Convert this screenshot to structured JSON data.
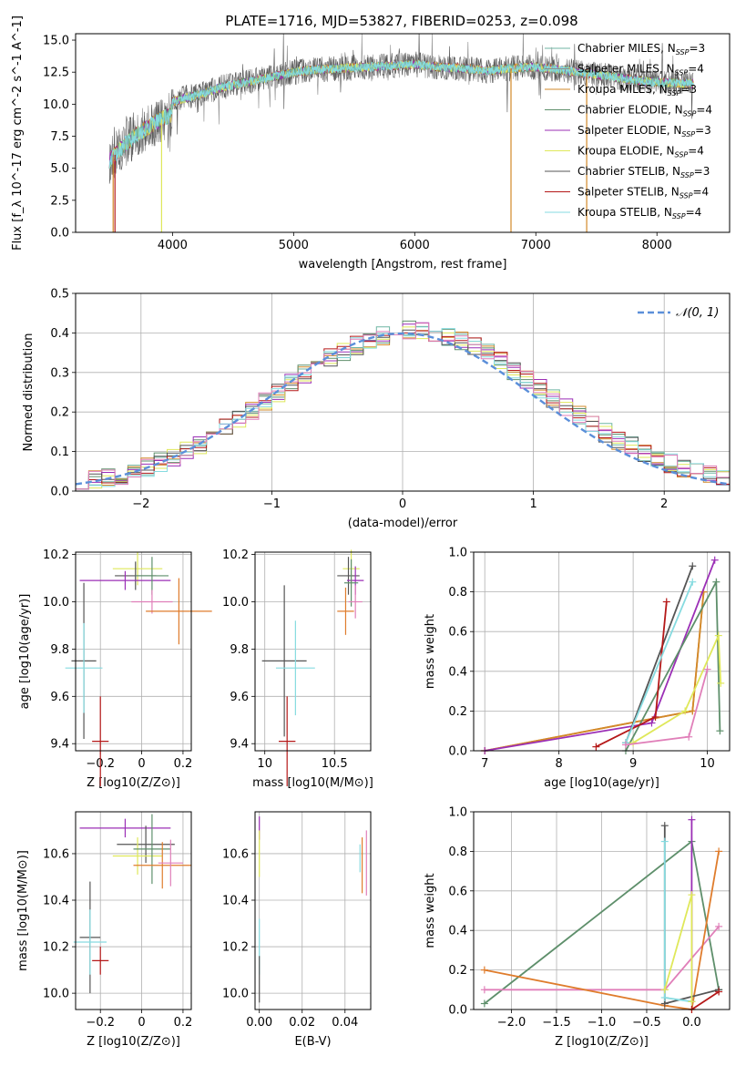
{
  "title": "PLATE=1716, MJD=53827, FIBERID=0253, z=0.098",
  "colors": {
    "Chabrier MILES": "#6fb5a3",
    "Salpeter MILES": "#8c8c8c",
    "Kroupa MILES": "#d28a2a",
    "Chabrier ELODIE": "#5e8f6b",
    "Salpeter ELODIE": "#9b2fb6",
    "Kroupa ELODIE": "#dfe85a",
    "Chabrier STELIB": "#555555",
    "Salpeter STELIB": "#b51818",
    "Kroupa STELIB": "#86dbe0",
    "pink": "#e07fb9",
    "orange": "#df7c2c",
    "normal": "#5b8fd9"
  },
  "chart_data": [
    {
      "id": "spectrum",
      "type": "line",
      "xlabel": "wavelength [Angstrom, rest frame]",
      "ylabel": "Flux [f_λ 10^-17 erg cm^-2 s^-1 A^-1]",
      "xlim": [
        3200,
        8600
      ],
      "ylim": [
        0,
        15.5
      ],
      "xticks": [
        4000,
        5000,
        6000,
        7000,
        8000
      ],
      "yticks": [
        0.0,
        2.5,
        5.0,
        7.5,
        10.0,
        12.5,
        15.0
      ],
      "grid": false,
      "legend_position": "top-right",
      "series": [
        {
          "name": "Chabrier MILES, N_SSP=3",
          "color_key": "Chabrier MILES"
        },
        {
          "name": "Salpeter MILES, N_SSP=4",
          "color_key": "Salpeter MILES"
        },
        {
          "name": "Kroupa MILES, N_SSP=3",
          "color_key": "Kroupa MILES"
        },
        {
          "name": "Chabrier ELODIE, N_SSP=4",
          "color_key": "Chabrier ELODIE"
        },
        {
          "name": "Salpeter ELODIE, N_SSP=3",
          "color_key": "Salpeter ELODIE"
        },
        {
          "name": "Kroupa ELODIE, N_SSP=4",
          "color_key": "Kroupa ELODIE"
        },
        {
          "name": "Chabrier STELIB, N_SSP=3",
          "color_key": "Chabrier STELIB"
        },
        {
          "name": "Salpeter STELIB, N_SSP=4",
          "color_key": "Salpeter STELIB"
        },
        {
          "name": "Kroupa STELIB, N_SSP=4",
          "color_key": "Kroupa STELIB"
        }
      ],
      "continuum": {
        "x": [
          3480,
          3600,
          3700,
          3800,
          3900,
          3990,
          4000,
          4200,
          4400,
          4600,
          4800,
          5000,
          5200,
          5400,
          5600,
          5800,
          6000,
          6200,
          6400,
          6600,
          6800,
          7000,
          7200,
          7400,
          7600,
          7800,
          8000,
          8300
        ],
        "y": [
          5.6,
          6.8,
          7.6,
          8.2,
          8.8,
          9.2,
          10.2,
          10.7,
          11.3,
          11.7,
          12.1,
          12.5,
          12.7,
          12.8,
          12.9,
          13.0,
          13.1,
          12.9,
          12.8,
          12.6,
          12.8,
          12.9,
          12.7,
          12.4,
          12.2,
          11.9,
          11.7,
          11.6
        ]
      }
    },
    {
      "id": "residuals",
      "type": "line",
      "xlabel": "(data-model)/error",
      "ylabel": "Normed distribution",
      "xlim": [
        -2.5,
        2.5
      ],
      "ylim": [
        0,
        0.5
      ],
      "xticks": [
        -2,
        -1,
        0,
        1,
        2
      ],
      "yticks": [
        0.0,
        0.1,
        0.2,
        0.3,
        0.4,
        0.5
      ],
      "grid": true,
      "legend_position": "top-right",
      "reference": {
        "name": "𝒩(0, 1)",
        "mean": 0,
        "sigma": 1,
        "color_key": "normal"
      },
      "bin_width": 0.1
    },
    {
      "id": "age-vs-Z",
      "type": "scatter",
      "xlabel": "Z [log10(Z/Z⊙)]",
      "ylabel": "age  [log10(age/yr)]",
      "xlim": [
        -0.32,
        0.24
      ],
      "ylim": [
        9.37,
        10.21
      ],
      "xticks": [
        -0.2,
        0.0,
        0.2
      ],
      "ytick_labels": [
        "9.4",
        "9.6",
        "9.8",
        "10.0",
        "10.2"
      ],
      "yticks": [
        9.4,
        9.6,
        9.8,
        10.0,
        10.2
      ],
      "grid": true,
      "errorbars": [
        {
          "color_key": "Kroupa ELODIE",
          "x": -0.02,
          "y": 10.14,
          "xerr": 0.12,
          "yerr": 0.07
        },
        {
          "color_key": "Chabrier STELIB",
          "x": -0.03,
          "y": 10.11,
          "xerr": 0.1,
          "yerr": 0.06
        },
        {
          "color_key": "Salpeter ELODIE",
          "x": -0.08,
          "y": 10.09,
          "xerr": 0.22,
          "yerr": 0.04
        },
        {
          "color_key": "Chabrier ELODIE",
          "x": 0.05,
          "y": 10.11,
          "xerr": 0.08,
          "yerr": 0.08
        },
        {
          "color_key": "pink",
          "x": 0.05,
          "y": 10.0,
          "xerr": 0.1,
          "yerr": 0.05
        },
        {
          "color_key": "orange",
          "x": 0.18,
          "y": 9.96,
          "xerr": 0.16,
          "yerr": 0.14
        },
        {
          "color_key": "Chabrier STELIB",
          "x": -0.28,
          "y": 9.75,
          "xerr": 0.06,
          "yerr": 0.33
        },
        {
          "color_key": "Kroupa STELIB",
          "x": -0.28,
          "y": 9.72,
          "xerr": 0.09,
          "yerr": 0.19
        },
        {
          "color_key": "Salpeter STELIB",
          "x": -0.2,
          "y": 9.41,
          "xerr": 0.04,
          "yerr": 0.19
        }
      ]
    },
    {
      "id": "age-vs-mass",
      "type": "scatter",
      "xlabel": "mass [log10(M/M⊙)]",
      "ylabel": "",
      "xlim": [
        9.93,
        10.76
      ],
      "ylim": [
        9.37,
        10.21
      ],
      "xticks": [
        10.0,
        10.5
      ],
      "yticks": [
        9.4,
        9.6,
        9.8,
        10.0,
        10.2
      ],
      "ytick_labels": [
        "9.4",
        "9.6",
        "9.8",
        "10.0",
        "10.2"
      ],
      "grid": true,
      "errorbars": [
        {
          "color_key": "Kroupa ELODIE",
          "x": 10.62,
          "y": 10.14,
          "xerr": 0.06,
          "yerr": 0.08
        },
        {
          "color_key": "Chabrier STELIB",
          "x": 10.6,
          "y": 10.11,
          "xerr": 0.08,
          "yerr": 0.08
        },
        {
          "color_key": "Salpeter ELODIE",
          "x": 10.65,
          "y": 10.09,
          "xerr": 0.06,
          "yerr": 0.06
        },
        {
          "color_key": "Chabrier ELODIE",
          "x": 10.62,
          "y": 10.08,
          "xerr": 0.05,
          "yerr": 0.1
        },
        {
          "color_key": "pink",
          "x": 10.65,
          "y": 10.0,
          "xerr": 0.05,
          "yerr": 0.07
        },
        {
          "color_key": "orange",
          "x": 10.58,
          "y": 9.96,
          "xerr": 0.06,
          "yerr": 0.1
        },
        {
          "color_key": "Chabrier STELIB",
          "x": 10.14,
          "y": 9.75,
          "xerr": 0.16,
          "yerr": 0.32
        },
        {
          "color_key": "Kroupa STELIB",
          "x": 10.22,
          "y": 9.72,
          "xerr": 0.14,
          "yerr": 0.2
        },
        {
          "color_key": "Salpeter STELIB",
          "x": 10.16,
          "y": 9.41,
          "xerr": 0.06,
          "yerr": 0.19
        }
      ]
    },
    {
      "id": "weight-vs-age",
      "type": "line",
      "xlabel": "age  [log10(age/yr)]",
      "ylabel": "mass weight",
      "xlim": [
        6.85,
        10.3
      ],
      "ylim": [
        0,
        1
      ],
      "xticks": [
        7,
        8,
        9,
        10
      ],
      "yticks": [
        0.0,
        0.2,
        0.4,
        0.6,
        0.8,
        1.0
      ],
      "grid": true,
      "series": [
        {
          "color_key": "orange",
          "x": [
            7.0,
            9.8,
            9.95
          ],
          "y": [
            0.0,
            0.2,
            0.8
          ]
        },
        {
          "color_key": "Kroupa MILES",
          "x": [
            7.0,
            9.8,
            9.95
          ],
          "y": [
            0.0,
            0.2,
            0.8
          ]
        },
        {
          "color_key": "Salpeter ELODIE",
          "x": [
            7.0,
            9.25,
            10.1
          ],
          "y": [
            0.0,
            0.14,
            0.96
          ]
        },
        {
          "color_key": "Chabrier ELODIE",
          "x": [
            8.9,
            10.12,
            10.17
          ],
          "y": [
            0.0,
            0.85,
            0.1
          ]
        },
        {
          "color_key": "Chabrier STELIB",
          "x": [
            8.9,
            9.8
          ],
          "y": [
            0.04,
            0.93
          ]
        },
        {
          "color_key": "Salpeter STELIB",
          "x": [
            8.5,
            9.3,
            9.45
          ],
          "y": [
            0.02,
            0.17,
            0.75
          ]
        },
        {
          "color_key": "Kroupa STELIB",
          "x": [
            8.9,
            9.8
          ],
          "y": [
            0.04,
            0.85
          ]
        },
        {
          "color_key": "Kroupa ELODIE",
          "x": [
            9.0,
            9.7,
            10.15,
            10.18
          ],
          "y": [
            0.04,
            0.2,
            0.58,
            0.34
          ]
        },
        {
          "color_key": "pink",
          "x": [
            8.9,
            9.75,
            10.0
          ],
          "y": [
            0.03,
            0.07,
            0.41
          ]
        }
      ]
    },
    {
      "id": "mass-vs-Z",
      "type": "scatter",
      "xlabel": "Z [log10(Z/Z⊙)]",
      "ylabel": "mass [log10(M/M⊙)]",
      "xlim": [
        -0.32,
        0.24
      ],
      "ylim": [
        9.93,
        10.78
      ],
      "xticks": [
        -0.2,
        0.0,
        0.2
      ],
      "yticks": [
        10.0,
        10.2,
        10.4,
        10.6
      ],
      "ytick_labels": [
        "10.0",
        "10.2",
        "10.4",
        "10.6"
      ],
      "grid": true,
      "errorbars": [
        {
          "color_key": "Salpeter ELODIE",
          "x": -0.08,
          "y": 10.71,
          "xerr": 0.22,
          "yerr": 0.04
        },
        {
          "color_key": "Chabrier STELIB",
          "x": 0.02,
          "y": 10.64,
          "xerr": 0.14,
          "yerr": 0.08
        },
        {
          "color_key": "Kroupa ELODIE",
          "x": -0.02,
          "y": 10.59,
          "xerr": 0.12,
          "yerr": 0.08
        },
        {
          "color_key": "Chabrier ELODIE",
          "x": 0.05,
          "y": 10.62,
          "xerr": 0.09,
          "yerr": 0.15
        },
        {
          "color_key": "orange",
          "x": 0.1,
          "y": 10.55,
          "xerr": 0.14,
          "yerr": 0.1
        },
        {
          "color_key": "pink",
          "x": 0.14,
          "y": 10.56,
          "xerr": 0.06,
          "yerr": 0.1
        },
        {
          "color_key": "Chabrier STELIB",
          "x": -0.25,
          "y": 10.24,
          "xerr": 0.05,
          "yerr": 0.24
        },
        {
          "color_key": "Kroupa STELIB",
          "x": -0.25,
          "y": 10.22,
          "xerr": 0.08,
          "yerr": 0.14
        },
        {
          "color_key": "Salpeter STELIB",
          "x": -0.2,
          "y": 10.14,
          "xerr": 0.04,
          "yerr": 0.06
        }
      ]
    },
    {
      "id": "mass-vs-ebv",
      "type": "scatter",
      "xlabel": "E(B-V)",
      "ylabel": "",
      "xlim": [
        -0.002,
        0.052
      ],
      "ylim": [
        9.93,
        10.78
      ],
      "xticks": [
        0.0,
        0.02,
        0.04
      ],
      "xtick_labels": [
        "0.00",
        "0.02",
        "0.04"
      ],
      "yticks": [
        10.0,
        10.2,
        10.4,
        10.6
      ],
      "ytick_labels": [
        "10.0",
        "10.2",
        "10.4",
        "10.6"
      ],
      "grid": true,
      "errorbars": [
        {
          "color_key": "Salpeter ELODIE",
          "x": 0.0,
          "y": 10.71,
          "xerr": 0,
          "yerr": 0.05
        },
        {
          "color_key": "Kroupa ELODIE",
          "x": 0.0,
          "y": 10.6,
          "xerr": 0,
          "yerr": 0.1
        },
        {
          "color_key": "Kroupa STELIB",
          "x": 0.0,
          "y": 10.2,
          "xerr": 0,
          "yerr": 0.12
        },
        {
          "color_key": "Chabrier STELIB",
          "x": 0.0,
          "y": 10.06,
          "xerr": 0,
          "yerr": 0.1
        },
        {
          "color_key": "Kroupa STELIB",
          "x": 0.047,
          "y": 10.58,
          "xerr": 0,
          "yerr": 0.06
        },
        {
          "color_key": "orange",
          "x": 0.048,
          "y": 10.55,
          "xerr": 0,
          "yerr": 0.12
        },
        {
          "color_key": "pink",
          "x": 0.05,
          "y": 10.56,
          "xerr": 0,
          "yerr": 0.14
        }
      ]
    },
    {
      "id": "weight-vs-Z",
      "type": "line",
      "xlabel": "Z [log10(Z/Z⊙)]",
      "ylabel": "mass weight",
      "xlim": [
        -2.42,
        0.42
      ],
      "ylim": [
        0,
        1
      ],
      "xticks": [
        -2.0,
        -1.5,
        -1.0,
        -0.5,
        0.0
      ],
      "xtick_labels": [
        "−2.0",
        "−1.5",
        "−1.0",
        "−0.5",
        "0.0"
      ],
      "yticks": [
        0.0,
        0.2,
        0.4,
        0.6,
        0.8,
        1.0
      ],
      "grid": true,
      "series": [
        {
          "color_key": "Chabrier ELODIE",
          "x": [
            -2.3,
            0.0,
            0.3
          ],
          "y": [
            0.03,
            0.85,
            0.1
          ]
        },
        {
          "color_key": "pink",
          "x": [
            -2.3,
            -0.3,
            0.3
          ],
          "y": [
            0.1,
            0.1,
            0.42
          ]
        },
        {
          "color_key": "orange",
          "x": [
            -2.3,
            -0.3,
            0.0,
            0.3
          ],
          "y": [
            0.2,
            0.02,
            0.0,
            0.8
          ]
        },
        {
          "color_key": "Salpeter ELODIE",
          "x": [
            0.0,
            0.0
          ],
          "y": [
            0.04,
            0.96
          ]
        },
        {
          "color_key": "Chabrier STELIB",
          "x": [
            -0.3,
            -0.3,
            0.3
          ],
          "y": [
            0.93,
            0.03,
            0.1
          ]
        },
        {
          "color_key": "Kroupa STELIB",
          "x": [
            -0.3,
            -0.3,
            0.0
          ],
          "y": [
            0.85,
            0.06,
            0.04
          ]
        },
        {
          "color_key": "Kroupa ELODIE",
          "x": [
            -0.3,
            0.0,
            0.0
          ],
          "y": [
            0.1,
            0.58,
            0.04
          ]
        },
        {
          "color_key": "Salpeter STELIB",
          "x": [
            0.0,
            0.3
          ],
          "y": [
            0.0,
            0.09
          ]
        }
      ]
    }
  ]
}
